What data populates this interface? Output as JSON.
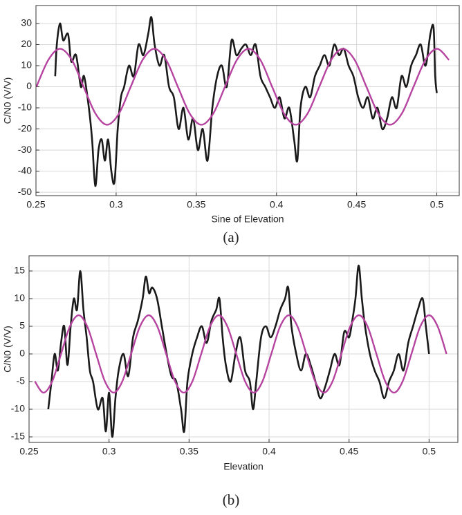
{
  "chart_data": [
    {
      "type": "line",
      "xlabel": "Sine of Elevation",
      "ylabel": "C/N0 (V/V)",
      "caption": "(a)",
      "xlim": [
        0.25,
        0.514
      ],
      "ylim": [
        -51.6,
        38.5
      ],
      "xticks": [
        0.25,
        0.3,
        0.35,
        0.4,
        0.45,
        0.5
      ],
      "yticks": [
        -50,
        -40,
        -30,
        -20,
        -10,
        0,
        10,
        20,
        30
      ],
      "grid": true,
      "series": [
        {
          "color": "#1a1a1a",
          "x": [
            0.262,
            0.263,
            0.265,
            0.267,
            0.27,
            0.272,
            0.275,
            0.278,
            0.28,
            0.283,
            0.285,
            0.287,
            0.289,
            0.291,
            0.293,
            0.295,
            0.297,
            0.299,
            0.301,
            0.303,
            0.305,
            0.308,
            0.311,
            0.314,
            0.317,
            0.32,
            0.322,
            0.324,
            0.327,
            0.33,
            0.333,
            0.336,
            0.339,
            0.342,
            0.345,
            0.348,
            0.351,
            0.354,
            0.357,
            0.36,
            0.363,
            0.366,
            0.369,
            0.372,
            0.375,
            0.378,
            0.381,
            0.384,
            0.387,
            0.39,
            0.393,
            0.396,
            0.399,
            0.402,
            0.405,
            0.408,
            0.411,
            0.413,
            0.415,
            0.418,
            0.421,
            0.424,
            0.427,
            0.43,
            0.433,
            0.436,
            0.439,
            0.442,
            0.445,
            0.448,
            0.451,
            0.454,
            0.457,
            0.46,
            0.463,
            0.466,
            0.469,
            0.472,
            0.475,
            0.478,
            0.481,
            0.484,
            0.487,
            0.49,
            0.493,
            0.496,
            0.498,
            0.499,
            0.5
          ],
          "values": [
            5,
            20,
            30,
            22,
            25,
            12,
            15,
            0,
            5,
            -10,
            -25,
            -47,
            -30,
            -25,
            -35,
            -25,
            -40,
            -45,
            -20,
            -5,
            0,
            10,
            5,
            20,
            15,
            25,
            33,
            20,
            10,
            15,
            0,
            -5,
            -20,
            -10,
            -25,
            -15,
            -30,
            -20,
            -35,
            -10,
            5,
            10,
            0,
            22,
            15,
            18,
            20,
            15,
            20,
            5,
            0,
            -5,
            -10,
            -5,
            -15,
            -10,
            -25,
            -35,
            -10,
            0,
            -5,
            5,
            10,
            15,
            10,
            20,
            15,
            18,
            10,
            5,
            -5,
            -10,
            -5,
            -15,
            -10,
            -20,
            -15,
            -5,
            -10,
            5,
            0,
            10,
            15,
            20,
            10,
            25,
            28,
            5,
            -3
          ]
        },
        {
          "color": "#b5439f",
          "x": [
            0.2503,
            0.2577,
            0.265,
            0.2724,
            0.2797,
            0.2871,
            0.2944,
            0.3018,
            0.3091,
            0.3165,
            0.3238,
            0.3312,
            0.3385,
            0.3459,
            0.3532,
            0.3606,
            0.3679,
            0.3753,
            0.3826,
            0.39,
            0.3973,
            0.4047,
            0.412,
            0.4194,
            0.4267,
            0.4341,
            0.4414,
            0.4488,
            0.4561,
            0.4635,
            0.4708,
            0.4782,
            0.4855,
            0.4929,
            0.5002,
            0.5076
          ],
          "values": [
            0,
            12.7,
            18,
            12.7,
            0,
            -12.7,
            -18,
            -12.7,
            0,
            12.7,
            18,
            12.7,
            0,
            -12.7,
            -18,
            -12.7,
            0,
            12.7,
            18,
            12.7,
            0,
            -12.7,
            -18,
            -12.7,
            0,
            12.7,
            18,
            12.7,
            0,
            -12.7,
            -18,
            -12.7,
            0,
            12.7,
            18,
            12.7
          ]
        }
      ]
    },
    {
      "type": "line",
      "xlabel": "Elevation",
      "ylabel": "C/N0 (V/V)",
      "caption": "(b)",
      "xlim": [
        0.25,
        0.518
      ],
      "ylim": [
        -16,
        17.75
      ],
      "xticks": [
        0.25,
        0.3,
        0.35,
        0.4,
        0.45,
        0.5
      ],
      "yticks": [
        -15,
        -10,
        -5,
        0,
        5,
        10,
        15
      ],
      "grid": true,
      "series": [
        {
          "color": "#1a1a1a",
          "x": [
            0.262,
            0.264,
            0.266,
            0.268,
            0.27,
            0.272,
            0.274,
            0.276,
            0.278,
            0.28,
            0.282,
            0.284,
            0.286,
            0.288,
            0.29,
            0.293,
            0.296,
            0.298,
            0.3,
            0.302,
            0.304,
            0.306,
            0.309,
            0.312,
            0.315,
            0.318,
            0.321,
            0.323,
            0.325,
            0.327,
            0.33,
            0.333,
            0.336,
            0.339,
            0.342,
            0.345,
            0.347,
            0.349,
            0.352,
            0.355,
            0.358,
            0.361,
            0.364,
            0.367,
            0.369,
            0.371,
            0.373,
            0.376,
            0.379,
            0.382,
            0.385,
            0.388,
            0.39,
            0.392,
            0.395,
            0.398,
            0.401,
            0.404,
            0.407,
            0.41,
            0.412,
            0.414,
            0.417,
            0.42,
            0.423,
            0.426,
            0.429,
            0.432,
            0.435,
            0.438,
            0.441,
            0.444,
            0.447,
            0.45,
            0.452,
            0.454,
            0.456,
            0.458,
            0.46,
            0.463,
            0.466,
            0.469,
            0.472,
            0.475,
            0.478,
            0.481,
            0.484,
            0.487,
            0.49,
            0.493,
            0.496,
            0.498,
            0.5
          ],
          "values": [
            -10,
            -5,
            0,
            -3,
            2,
            5,
            -2,
            5,
            10,
            8,
            15,
            8,
            3,
            -3,
            -5,
            -10,
            -8,
            -14,
            -7,
            -15,
            -8,
            -3,
            0,
            -4,
            3,
            6,
            10,
            14,
            11,
            12,
            10,
            5,
            0,
            -4,
            -5,
            -10,
            -14,
            -5,
            0,
            3,
            5,
            2,
            6,
            8,
            10,
            3,
            -2,
            -5,
            0,
            3,
            -3,
            -5,
            -10,
            -5,
            3,
            5,
            3,
            5,
            8,
            10,
            12,
            5,
            0,
            -3,
            0,
            -2,
            -5,
            -8,
            -6,
            -3,
            0,
            -2,
            4,
            3,
            6,
            10,
            16,
            10,
            5,
            0,
            -3,
            -5,
            -8,
            -5,
            -3,
            0,
            -3,
            2,
            5,
            8,
            10,
            5,
            0
          ]
        },
        {
          "color": "#b5439f",
          "x": [
            0.2536,
            0.259,
            0.2645,
            0.27,
            0.2755,
            0.281,
            0.2864,
            0.2919,
            0.2974,
            0.3029,
            0.3083,
            0.3138,
            0.3193,
            0.3248,
            0.3302,
            0.3357,
            0.3412,
            0.3467,
            0.3521,
            0.3576,
            0.3631,
            0.3686,
            0.374,
            0.3795,
            0.385,
            0.3905,
            0.3959,
            0.4014,
            0.4069,
            0.4124,
            0.4178,
            0.4233,
            0.4288,
            0.4343,
            0.4397,
            0.4452,
            0.4507,
            0.4562,
            0.4616,
            0.4671,
            0.4726,
            0.4781,
            0.4835,
            0.489,
            0.4945,
            0.5,
            0.5054,
            0.5109
          ],
          "values": [
            -4.95,
            -7,
            -4.95,
            0,
            4.95,
            7,
            4.95,
            0,
            -4.95,
            -7,
            -4.95,
            0,
            4.95,
            7,
            4.95,
            0,
            -4.95,
            -7,
            -4.95,
            0,
            4.95,
            7,
            4.95,
            0,
            -4.95,
            -7,
            -4.95,
            0,
            4.95,
            7,
            4.95,
            0,
            -4.95,
            -7,
            -4.95,
            0,
            4.95,
            7,
            4.95,
            0,
            -4.95,
            -7,
            -4.95,
            0,
            4.95,
            7,
            4.95,
            0
          ]
        }
      ]
    }
  ]
}
